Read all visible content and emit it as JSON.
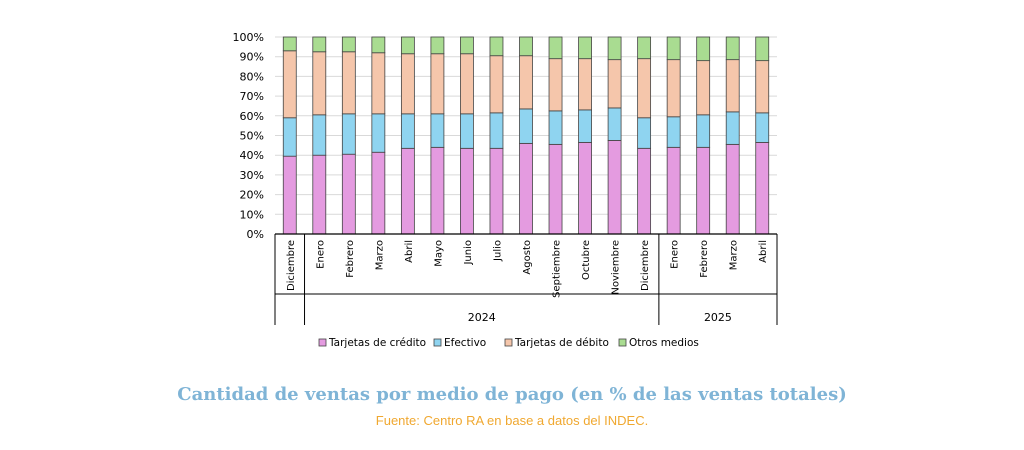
{
  "chart_data": {
    "type": "bar",
    "stacked": true,
    "title": "Cantidad de ventas por medio de pago (en % de las ventas totales)",
    "source": "Fuente: Centro RA en base a datos del INDEC.",
    "categories": [
      "Diciembre",
      "Enero",
      "Febrero",
      "Marzo",
      "Abril",
      "Mayo",
      "Junio",
      "Julio",
      "Agosto",
      "Septiembre",
      "Octubre",
      "Noviembre",
      "Diciembre",
      "Enero",
      "Febrero",
      "Marzo",
      "Abril"
    ],
    "groups": [
      {
        "label": "",
        "start": 0,
        "end": 0
      },
      {
        "label": "2024",
        "start": 1,
        "end": 12
      },
      {
        "label": "2025",
        "start": 13,
        "end": 16
      }
    ],
    "series": [
      {
        "name": "Tarjetas de crédito",
        "color": "#e49be0",
        "values": [
          39.5,
          40,
          40.5,
          41.5,
          43.5,
          44,
          43.5,
          43.5,
          46,
          45.5,
          46.5,
          47.5,
          43.5,
          44,
          44,
          45.5,
          46.5
        ]
      },
      {
        "name": "Efectivo",
        "color": "#8fd4f0",
        "values": [
          19.5,
          20.5,
          20.5,
          19.5,
          17.5,
          17,
          17.5,
          18,
          17.5,
          17,
          16.5,
          16.5,
          15.5,
          15.5,
          16.5,
          16.5,
          15
        ]
      },
      {
        "name": "Tarjetas de débito",
        "color": "#f5c6ab",
        "values": [
          34,
          32,
          31.5,
          31,
          30.5,
          30.5,
          30.5,
          29,
          27,
          26.5,
          26,
          24.5,
          30,
          29,
          27.5,
          26.5,
          26.5
        ]
      },
      {
        "name": "Otros medios",
        "color": "#a9dc91",
        "values": [
          7,
          7.5,
          7.5,
          8,
          8.5,
          8.5,
          8.5,
          9.5,
          9.5,
          11,
          11,
          11.5,
          11,
          11.5,
          12,
          11.5,
          12
        ]
      }
    ],
    "ylim": [
      0,
      100
    ],
    "yticks": [
      "0%",
      "10%",
      "20%",
      "30%",
      "40%",
      "50%",
      "60%",
      "70%",
      "80%",
      "90%",
      "100%"
    ],
    "grid": true,
    "legend_position": "bottom"
  }
}
